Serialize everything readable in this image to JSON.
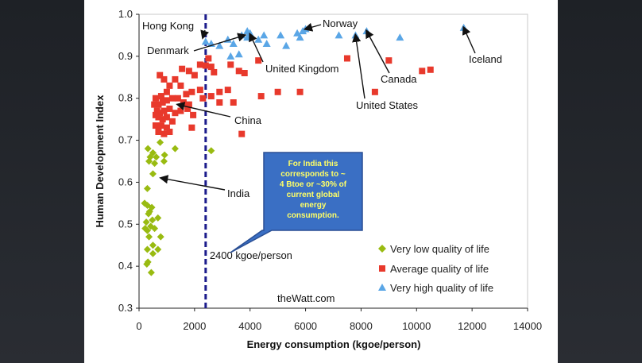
{
  "chart_data": {
    "type": "scatter",
    "xlabel": "Energy consumption (kgoe/person)",
    "ylabel": "Human Development Index",
    "xlim": [
      0,
      14000
    ],
    "ylim": [
      0.3,
      1.0
    ],
    "xticks": [
      "0",
      "2000",
      "4000",
      "6000",
      "8000",
      "10000",
      "12000",
      "14000"
    ],
    "yticks": [
      "0.3",
      "0.4",
      "0.5",
      "0.6",
      "0.7",
      "0.8",
      "0.9",
      "1.0"
    ],
    "grid": false,
    "legend_position": "bottom-right",
    "colors": {
      "very_low": "#99bb11",
      "average": "#e8392c",
      "very_high": "#5aa6e6",
      "threshold": "#1c1c8c",
      "callout": "#3a6fc4"
    },
    "threshold": {
      "x": 2400,
      "label": "2400 kgoe/person"
    },
    "callout": {
      "lines": [
        "For India this",
        "corresponds to ~",
        "4 Btoe or ~30% of",
        "current global",
        "energy",
        "consumption."
      ]
    },
    "watermark": "theWatt.com",
    "series": [
      {
        "name": "Very low quality of life",
        "marker": "diamond",
        "points": [
          [
            320,
            0.68
          ],
          [
            400,
            0.66
          ],
          [
            500,
            0.67
          ],
          [
            620,
            0.66
          ],
          [
            760,
            0.695
          ],
          [
            920,
            0.665
          ],
          [
            1300,
            0.68
          ],
          [
            2600,
            0.675
          ],
          [
            360,
            0.65
          ],
          [
            560,
            0.645
          ],
          [
            900,
            0.65
          ],
          [
            500,
            0.62
          ],
          [
            300,
            0.585
          ],
          [
            200,
            0.55
          ],
          [
            300,
            0.545
          ],
          [
            460,
            0.54
          ],
          [
            340,
            0.525
          ],
          [
            380,
            0.53
          ],
          [
            480,
            0.51
          ],
          [
            680,
            0.515
          ],
          [
            260,
            0.505
          ],
          [
            300,
            0.485
          ],
          [
            220,
            0.49
          ],
          [
            420,
            0.495
          ],
          [
            560,
            0.49
          ],
          [
            360,
            0.47
          ],
          [
            780,
            0.47
          ],
          [
            500,
            0.45
          ],
          [
            300,
            0.44
          ],
          [
            680,
            0.44
          ],
          [
            500,
            0.43
          ],
          [
            320,
            0.41
          ],
          [
            280,
            0.405
          ],
          [
            440,
            0.385
          ]
        ]
      },
      {
        "name": "Average quality of life",
        "marker": "square",
        "points": [
          [
            750,
            0.855
          ],
          [
            900,
            0.845
          ],
          [
            1100,
            0.83
          ],
          [
            1300,
            0.845
          ],
          [
            1550,
            0.87
          ],
          [
            1800,
            0.865
          ],
          [
            2000,
            0.855
          ],
          [
            2400,
            0.878
          ],
          [
            2600,
            0.875
          ],
          [
            2700,
            0.862
          ],
          [
            1500,
            0.83
          ],
          [
            1900,
            0.815
          ],
          [
            2200,
            0.82
          ],
          [
            2600,
            0.805
          ],
          [
            2900,
            0.815
          ],
          [
            3200,
            0.82
          ],
          [
            3400,
            0.79
          ],
          [
            2900,
            0.79
          ],
          [
            2300,
            0.8
          ],
          [
            1700,
            0.81
          ],
          [
            1000,
            0.815
          ],
          [
            800,
            0.805
          ],
          [
            600,
            0.8
          ],
          [
            550,
            0.785
          ],
          [
            700,
            0.785
          ],
          [
            850,
            0.79
          ],
          [
            1000,
            0.795
          ],
          [
            1200,
            0.8
          ],
          [
            1400,
            0.8
          ],
          [
            1600,
            0.79
          ],
          [
            1800,
            0.785
          ],
          [
            650,
            0.77
          ],
          [
            750,
            0.765
          ],
          [
            900,
            0.77
          ],
          [
            1100,
            0.775
          ],
          [
            1300,
            0.765
          ],
          [
            1500,
            0.77
          ],
          [
            1750,
            0.775
          ],
          [
            600,
            0.76
          ],
          [
            700,
            0.755
          ],
          [
            850,
            0.75
          ],
          [
            1000,
            0.755
          ],
          [
            1200,
            0.745
          ],
          [
            600,
            0.735
          ],
          [
            800,
            0.735
          ],
          [
            1000,
            0.73
          ],
          [
            700,
            0.72
          ],
          [
            900,
            0.715
          ],
          [
            1100,
            0.72
          ],
          [
            1900,
            0.73
          ],
          [
            1950,
            0.76
          ],
          [
            3700,
            0.715
          ],
          [
            3600,
            0.865
          ],
          [
            3800,
            0.86
          ],
          [
            4300,
            0.89
          ],
          [
            4400,
            0.805
          ],
          [
            5000,
            0.815
          ],
          [
            5800,
            0.815
          ],
          [
            7500,
            0.895
          ],
          [
            8500,
            0.815
          ],
          [
            9000,
            0.89
          ],
          [
            10200,
            0.865
          ],
          [
            10500,
            0.868
          ],
          [
            2500,
            0.895
          ],
          [
            2200,
            0.88
          ],
          [
            3300,
            0.88
          ]
        ]
      },
      {
        "name": "Very high quality of life",
        "marker": "triangle",
        "points": [
          [
            2400,
            0.935
          ],
          [
            2600,
            0.93
          ],
          [
            2900,
            0.925
          ],
          [
            3200,
            0.94
          ],
          [
            3400,
            0.93
          ],
          [
            3300,
            0.9
          ],
          [
            3600,
            0.905
          ],
          [
            3700,
            0.95
          ],
          [
            3900,
            0.945
          ],
          [
            4000,
            0.955
          ],
          [
            4300,
            0.94
          ],
          [
            4500,
            0.95
          ],
          [
            4600,
            0.93
          ],
          [
            5100,
            0.95
          ],
          [
            5300,
            0.925
          ],
          [
            5700,
            0.955
          ],
          [
            5800,
            0.945
          ],
          [
            5900,
            0.96
          ],
          [
            6000,
            0.965
          ],
          [
            7200,
            0.95
          ],
          [
            7800,
            0.95
          ],
          [
            8200,
            0.96
          ],
          [
            9400,
            0.945
          ],
          [
            11700,
            0.968
          ],
          [
            3900,
            0.96
          ]
        ]
      }
    ],
    "annotations": [
      {
        "text": "Hong Kong",
        "x": 2300,
        "y": 0.945
      },
      {
        "text": "Denmark",
        "x": 3800,
        "y": 0.95
      },
      {
        "text": "United Kingdom",
        "x": 4000,
        "y": 0.952
      },
      {
        "text": "Norway",
        "x": 6000,
        "y": 0.965
      },
      {
        "text": "Canada",
        "x": 8200,
        "y": 0.96
      },
      {
        "text": "United States",
        "x": 7800,
        "y": 0.95
      },
      {
        "text": "Iceland",
        "x": 11700,
        "y": 0.968
      },
      {
        "text": "China",
        "x": 1400,
        "y": 0.785
      },
      {
        "text": "India",
        "x": 800,
        "y": 0.61
      }
    ]
  }
}
